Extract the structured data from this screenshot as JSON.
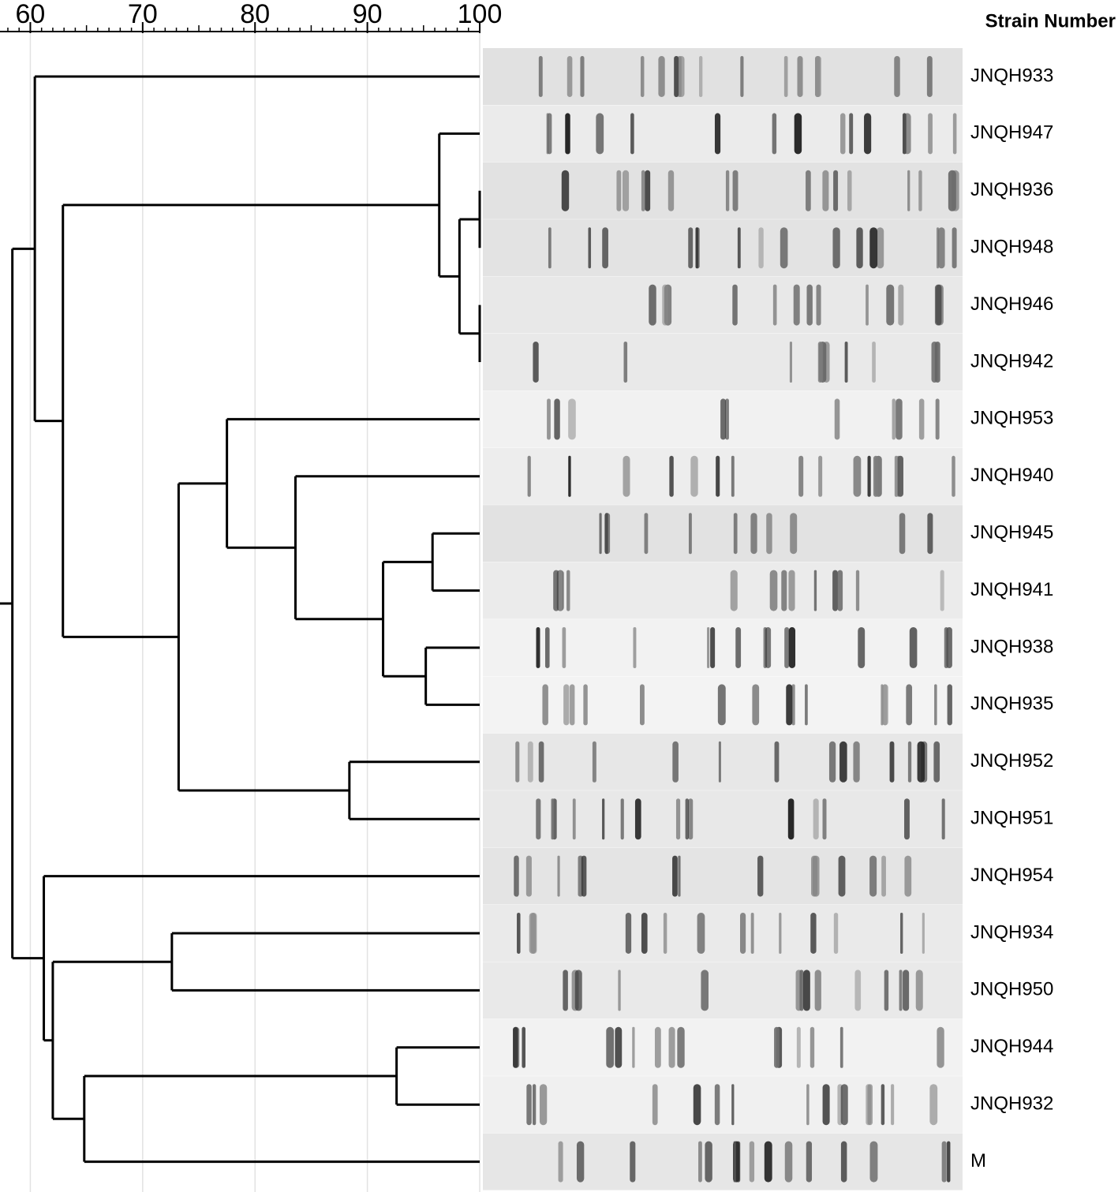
{
  "chart_data": {
    "type": "dendrogram",
    "header": "Strain Number",
    "xlim": [
      57.3,
      100
    ],
    "xticks": [
      60,
      70,
      80,
      90,
      100
    ],
    "grid": true,
    "color": "#000000",
    "tree": {
      "similarity": 58.4,
      "children": [
        {
          "similarity": 60.4,
          "children": [
            {
              "label": "JNQH933"
            },
            {
              "similarity": 62.9,
              "children": [
                {
                  "similarity": 96.4,
                  "children": [
                    {
                      "label": "JNQH947"
                    },
                    {
                      "similarity": 98.2,
                      "children": [
                        {
                          "similarity": 100,
                          "children": [
                            {
                              "label": "JNQH936"
                            },
                            {
                              "label": "JNQH948"
                            }
                          ]
                        },
                        {
                          "similarity": 100,
                          "children": [
                            {
                              "label": "JNQH946"
                            },
                            {
                              "label": "JNQH942"
                            }
                          ]
                        }
                      ]
                    }
                  ]
                },
                {
                  "similarity": 73.2,
                  "children": [
                    {
                      "similarity": 77.5,
                      "children": [
                        {
                          "label": "JNQH953"
                        },
                        {
                          "similarity": 83.6,
                          "children": [
                            {
                              "label": "JNQH940"
                            },
                            {
                              "similarity": 91.4,
                              "children": [
                                {
                                  "similarity": 95.8,
                                  "children": [
                                    {
                                      "label": "JNQH945"
                                    },
                                    {
                                      "label": "JNQH941"
                                    }
                                  ]
                                },
                                {
                                  "similarity": 95.2,
                                  "children": [
                                    {
                                      "label": "JNQH938"
                                    },
                                    {
                                      "label": "JNQH935"
                                    }
                                  ]
                                }
                              ]
                            }
                          ]
                        }
                      ]
                    },
                    {
                      "similarity": 88.4,
                      "children": [
                        {
                          "label": "JNQH952"
                        },
                        {
                          "label": "JNQH951"
                        }
                      ]
                    }
                  ]
                }
              ]
            }
          ]
        },
        {
          "similarity": 61.2,
          "children": [
            {
              "label": "JNQH954"
            },
            {
              "similarity": 62.0,
              "children": [
                {
                  "similarity": 72.6,
                  "children": [
                    {
                      "label": "JNQH934"
                    },
                    {
                      "label": "JNQH950"
                    }
                  ]
                },
                {
                  "similarity": 64.8,
                  "children": [
                    {
                      "similarity": 92.6,
                      "children": [
                        {
                          "label": "JNQH944"
                        },
                        {
                          "label": "JNQH932"
                        }
                      ]
                    },
                    {
                      "label": "M"
                    }
                  ]
                }
              ]
            }
          ]
        }
      ]
    }
  }
}
